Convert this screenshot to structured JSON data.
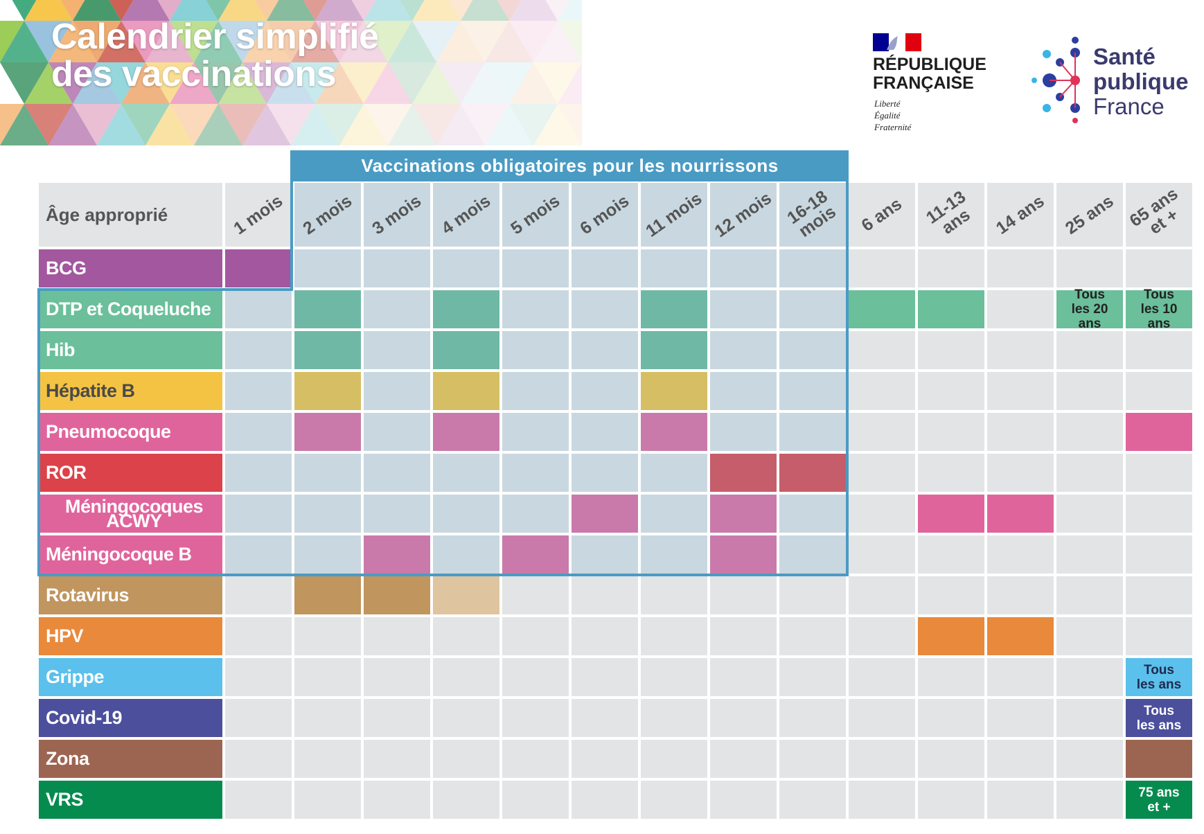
{
  "header": {
    "title": [
      "Calendrier simplifié",
      "des vaccinations"
    ]
  },
  "logos": {
    "republique": {
      "name": [
        "RÉPUBLIQUE",
        "FRANÇAISE"
      ],
      "motto": [
        "Liberté",
        "Égalité",
        "Fraternité"
      ]
    },
    "sante_publique": [
      "Santé",
      "publique",
      "France"
    ]
  },
  "table": {
    "banner": "Vaccinations obligatoires pour les nourrissons",
    "corner": "Âge approprié",
    "columns": [
      "1 mois",
      "2 mois",
      "3 mois",
      "4 mois",
      "5 mois",
      "6 mois",
      "11 mois",
      "12 mois",
      "16-18 mois",
      "6 ans",
      "11-13 ans",
      "14 ans",
      "25 ans",
      "65 ans et +"
    ],
    "rows": [
      {
        "name": "BCG",
        "color": "#a3579e",
        "text_color": "#ffffff",
        "cells": [
          {
            "color": "#a3579e"
          },
          null,
          null,
          null,
          null,
          null,
          null,
          null,
          null,
          null,
          null,
          null,
          null,
          null
        ]
      },
      {
        "name": "DTP et Coqueluche",
        "color": "#6bbf9b",
        "text_color": "#ffffff",
        "cells": [
          null,
          {
            "color": "#6fb8a6"
          },
          null,
          {
            "color": "#6fb8a6"
          },
          null,
          null,
          {
            "color": "#6fb8a6"
          },
          null,
          null,
          {
            "color": "#6bbf9b"
          },
          {
            "color": "#6bbf9b"
          },
          null,
          {
            "color": "#6bbf9b",
            "label": "Tous les 20 ans",
            "text_color": "#222222"
          },
          {
            "color": "#6bbf9b",
            "label": "Tous les 10 ans",
            "text_color": "#222222"
          }
        ]
      },
      {
        "name": "Hib",
        "color": "#6bbf9b",
        "text_color": "#ffffff",
        "cells": [
          null,
          {
            "color": "#6fb8a6"
          },
          null,
          {
            "color": "#6fb8a6"
          },
          null,
          null,
          {
            "color": "#6fb8a6"
          },
          null,
          null,
          null,
          null,
          null,
          null,
          null
        ]
      },
      {
        "name": "Hépatite B",
        "color": "#f5c343",
        "text_color": "#4a4a4a",
        "cells": [
          null,
          {
            "color": "#d6be64"
          },
          null,
          {
            "color": "#d6be64"
          },
          null,
          null,
          {
            "color": "#d6be64"
          },
          null,
          null,
          null,
          null,
          null,
          null,
          null
        ]
      },
      {
        "name": "Pneumocoque",
        "color": "#e0649c",
        "text_color": "#ffffff",
        "cells": [
          null,
          {
            "color": "#c97aab"
          },
          null,
          {
            "color": "#c97aab"
          },
          null,
          null,
          {
            "color": "#c97aab"
          },
          null,
          null,
          null,
          null,
          null,
          null,
          {
            "color": "#e0649c"
          }
        ]
      },
      {
        "name": "ROR",
        "color": "#dc4249",
        "text_color": "#ffffff",
        "cells": [
          null,
          null,
          null,
          null,
          null,
          null,
          null,
          {
            "color": "#c55e6a"
          },
          {
            "color": "#c55e6a"
          },
          null,
          null,
          null,
          null,
          null
        ]
      },
      {
        "name": "Méningocoques ACWY",
        "color": "#e0649c",
        "text_color": "#ffffff",
        "cells": [
          null,
          null,
          null,
          null,
          null,
          {
            "color": "#c97aab"
          },
          null,
          {
            "color": "#c97aab"
          },
          null,
          null,
          {
            "color": "#e0649c"
          },
          {
            "color": "#e0649c"
          },
          null,
          null
        ]
      },
      {
        "name": "Méningocoque B",
        "color": "#e0649c",
        "text_color": "#ffffff",
        "cells": [
          null,
          null,
          {
            "color": "#c97aab"
          },
          null,
          {
            "color": "#c97aab"
          },
          null,
          null,
          {
            "color": "#c97aab"
          },
          null,
          null,
          null,
          null,
          null,
          null
        ]
      },
      {
        "name": "Rotavirus",
        "color": "#c0955e",
        "text_color": "#ffffff",
        "cells": [
          null,
          {
            "color": "#c0955e"
          },
          {
            "color": "#c0955e"
          },
          {
            "color": "#dfc4a0"
          },
          null,
          null,
          null,
          null,
          null,
          null,
          null,
          null,
          null,
          null
        ]
      },
      {
        "name": "HPV",
        "color": "#e8893c",
        "text_color": "#ffffff",
        "cells": [
          null,
          null,
          null,
          null,
          null,
          null,
          null,
          null,
          null,
          null,
          {
            "color": "#e8893c"
          },
          {
            "color": "#e8893c"
          },
          null,
          null
        ]
      },
      {
        "name": "Grippe",
        "color": "#5bc0eb",
        "text_color": "#ffffff",
        "cells": [
          null,
          null,
          null,
          null,
          null,
          null,
          null,
          null,
          null,
          null,
          null,
          null,
          null,
          {
            "color": "#5bc0eb",
            "label": "Tous les ans",
            "text_color": "#1e2a50"
          }
        ]
      },
      {
        "name": "Covid-19",
        "color": "#4b4f9c",
        "text_color": "#ffffff",
        "cells": [
          null,
          null,
          null,
          null,
          null,
          null,
          null,
          null,
          null,
          null,
          null,
          null,
          null,
          {
            "color": "#4b4f9c",
            "label": "Tous les ans",
            "text_color": "#ffffff"
          }
        ]
      },
      {
        "name": "Zona",
        "color": "#9c6552",
        "text_color": "#ffffff",
        "cells": [
          null,
          null,
          null,
          null,
          null,
          null,
          null,
          null,
          null,
          null,
          null,
          null,
          null,
          {
            "color": "#9c6552"
          }
        ]
      },
      {
        "name": "VRS",
        "color": "#068b4f",
        "text_color": "#ffffff",
        "cells": [
          null,
          null,
          null,
          null,
          null,
          null,
          null,
          null,
          null,
          null,
          null,
          null,
          null,
          {
            "color": "#068b4f",
            "label": "75 ans et +",
            "text_color": "#ffffff"
          }
        ]
      }
    ]
  }
}
